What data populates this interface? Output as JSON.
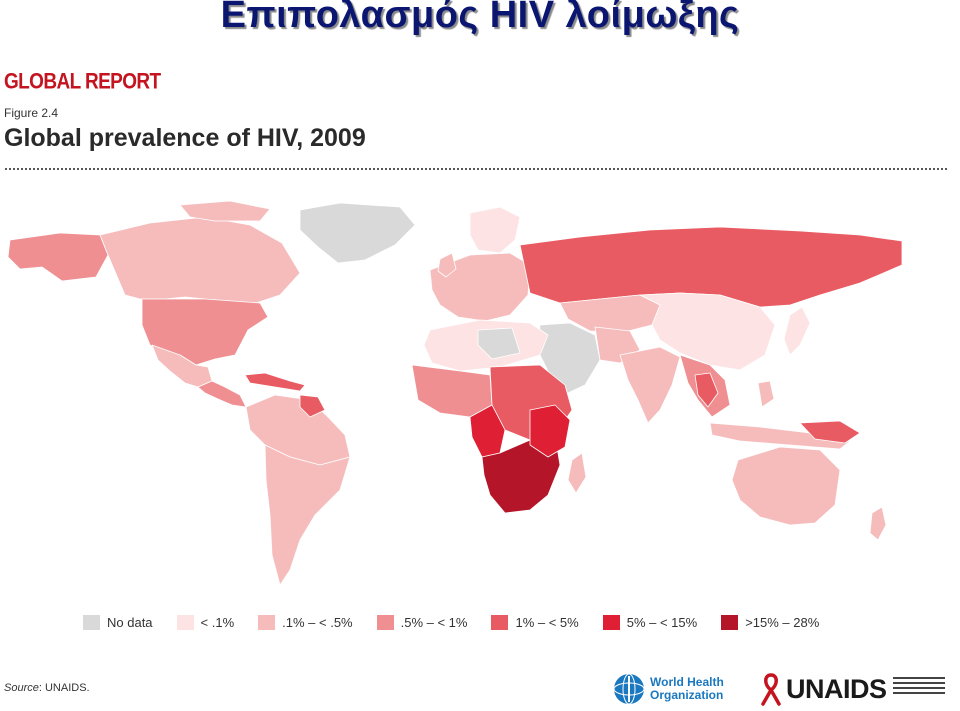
{
  "slide": {
    "title": "Επιπολασμός HIV λοίμωξης"
  },
  "figure": {
    "report_label": "GLOBAL REPORT",
    "number": "Figure 2.4",
    "title": "Global prevalence of HIV, 2009"
  },
  "legend": [
    {
      "label": "No data",
      "color": "#d9d9d9"
    },
    {
      "label": "< .1%",
      "color": "#fde3e3"
    },
    {
      "label": ".1% – < .5%",
      "color": "#f6bcbc"
    },
    {
      "label": ".5% – < 1%",
      "color": "#ef8f92"
    },
    {
      "label": "1% – < 5%",
      "color": "#e95b62"
    },
    {
      "label": "5% – < 15%",
      "color": "#df1f33"
    },
    {
      "label": ">15% – 28%",
      "color": "#b51528"
    }
  ],
  "source": {
    "prefix": "Source",
    "name": ": UNAIDS."
  },
  "logos": {
    "who_line1": "World Health",
    "who_line2": "Organization",
    "unaids": "UNAIDS"
  },
  "colors": {
    "title": "#0b1670",
    "report": "#c4141f",
    "border": "#ffffff",
    "who_blue": "#1a78c0"
  }
}
